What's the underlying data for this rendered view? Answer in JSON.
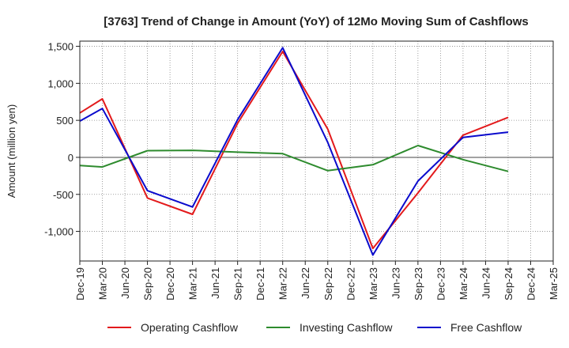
{
  "chart_data": {
    "type": "line",
    "title": "[3763]  Trend of Change in Amount (YoY) of 12Mo Moving Sum of Cashflows",
    "ylabel": "Amount (million yen)",
    "xlabel": "",
    "ylim": [
      -1400,
      1570
    ],
    "yticks": [
      1500,
      1000,
      500,
      0,
      -500,
      -1000
    ],
    "ytick_labels": [
      "1,500",
      "1,000",
      "500",
      "0",
      "-500",
      "-1,000"
    ],
    "categories": [
      "Dec-19",
      "Mar-20",
      "Jun-20",
      "Sep-20",
      "Dec-20",
      "Mar-21",
      "Jun-21",
      "Sep-21",
      "Dec-21",
      "Mar-22",
      "Jun-22",
      "Sep-22",
      "Dec-22",
      "Mar-23",
      "Jun-23",
      "Sep-23",
      "Dec-23",
      "Mar-24",
      "Jun-24",
      "Sep-24",
      "Dec-24",
      "Mar-25"
    ],
    "grid": true,
    "legend_position": "bottom",
    "series": [
      {
        "name": "Operating Cashflow",
        "color": "#e31a1c",
        "values": [
          600,
          790,
          null,
          -550,
          null,
          -770,
          null,
          460,
          null,
          1430,
          null,
          380,
          null,
          -1230,
          null,
          -480,
          null,
          300,
          null,
          540,
          null,
          null
        ]
      },
      {
        "name": "Investing Cashflow",
        "color": "#2e8b2e",
        "values": [
          -110,
          -130,
          null,
          90,
          null,
          95,
          null,
          70,
          null,
          50,
          null,
          -180,
          null,
          -100,
          null,
          160,
          null,
          -30,
          null,
          -190,
          null,
          null
        ]
      },
      {
        "name": "Free Cashflow",
        "color": "#0a0acc",
        "values": [
          490,
          660,
          null,
          -450,
          null,
          -670,
          null,
          510,
          null,
          1480,
          null,
          200,
          null,
          -1320,
          null,
          -320,
          null,
          270,
          null,
          340,
          null,
          null
        ]
      }
    ]
  }
}
